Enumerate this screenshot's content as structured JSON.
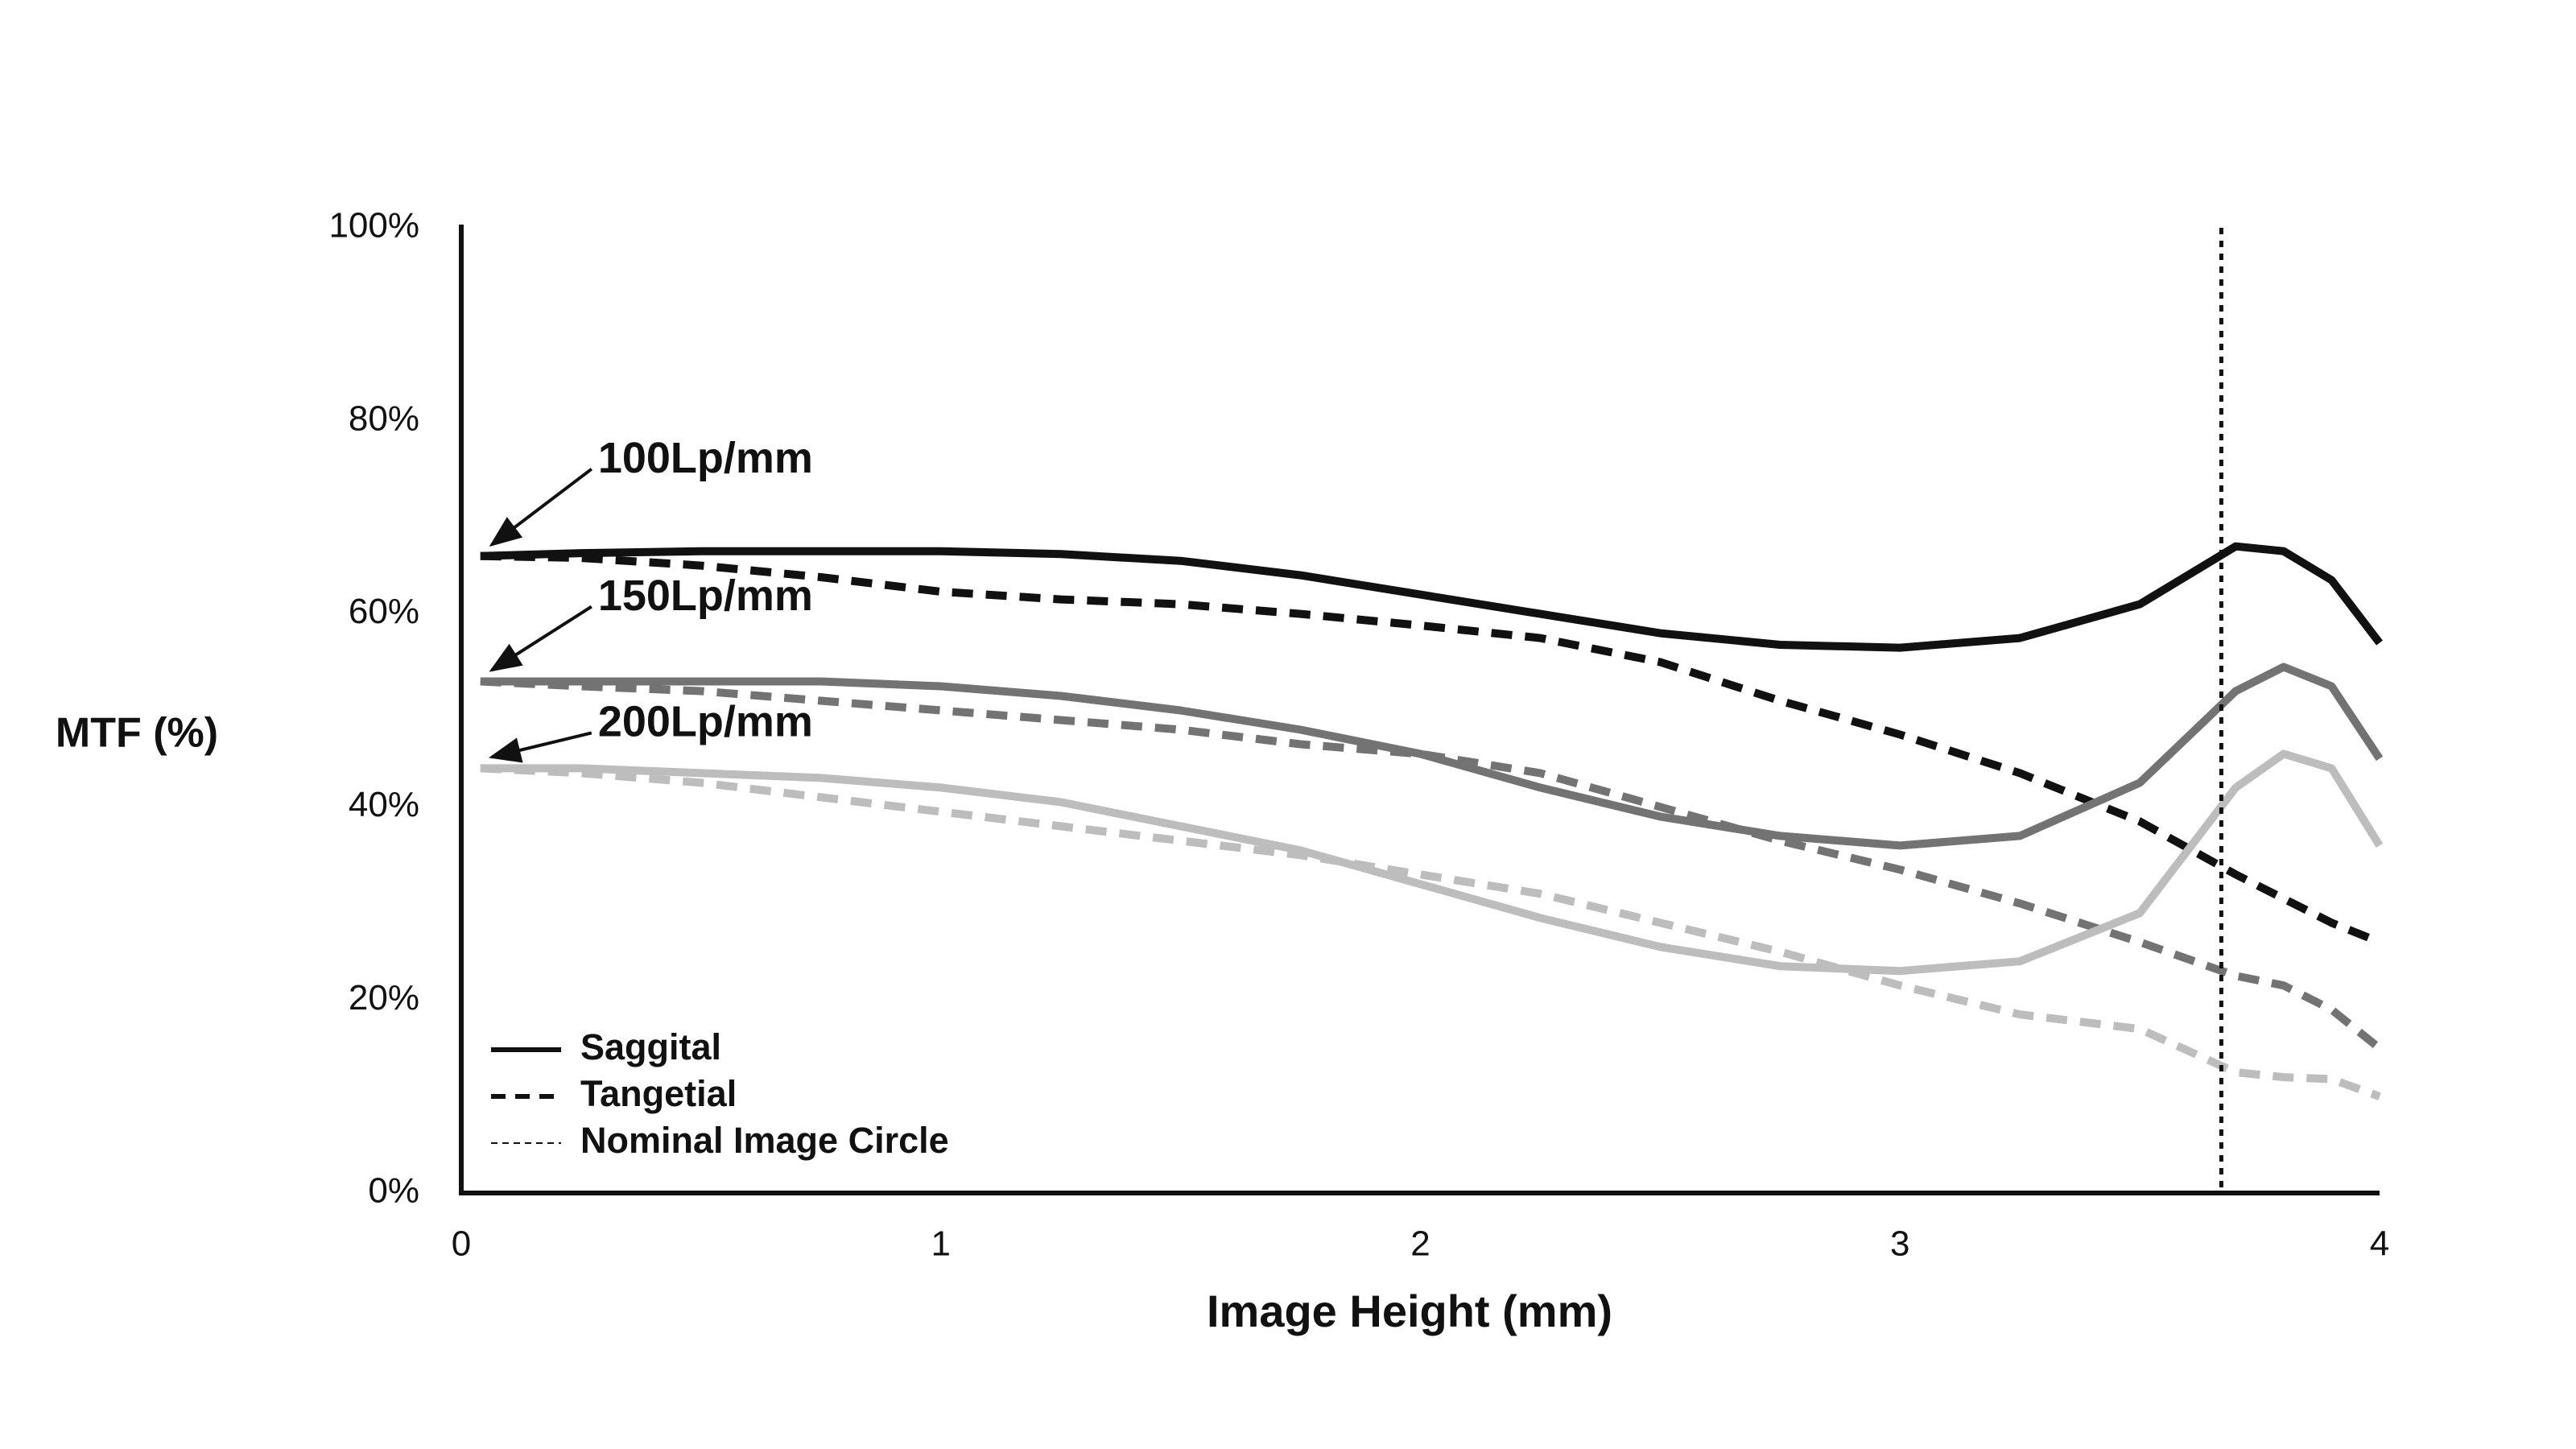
{
  "chart_data": {
    "type": "line",
    "ylabel": "MTF (%)",
    "xlabel": "Image Height (mm)",
    "xlim": [
      0,
      4
    ],
    "xticks": [
      0,
      1,
      2,
      3,
      4
    ],
    "ylim": [
      0,
      100
    ],
    "yticks": [
      {
        "value": 0,
        "label": "0%"
      },
      {
        "value": 20,
        "label": "20%"
      },
      {
        "value": 40,
        "label": "40%"
      },
      {
        "value": 60,
        "label": "60%"
      },
      {
        "value": 80,
        "label": "80%"
      },
      {
        "value": 100,
        "label": "100%"
      }
    ],
    "grid": false,
    "x": [
      0.04,
      0.25,
      0.5,
      0.75,
      1,
      1.25,
      1.5,
      1.75,
      2,
      2.25,
      2.5,
      2.75,
      3,
      3.25,
      3.5,
      3.7,
      3.8,
      3.9,
      4
    ],
    "series": [
      {
        "label": "100Lp/mm",
        "style": "solid",
        "color": "#111111",
        "values": [
          66,
          66.3,
          66.5,
          66.5,
          66.5,
          66.2,
          65.5,
          64,
          62,
          60,
          58,
          56.8,
          56.5,
          57.5,
          61,
          67,
          66.5,
          63.5,
          57
        ]
      },
      {
        "style": "dashed",
        "color": "#111111",
        "values": [
          66,
          65.8,
          65,
          63.8,
          62.3,
          61.5,
          61,
          60,
          58.8,
          57.5,
          55,
          51,
          47.5,
          43.5,
          38.5,
          33,
          30.5,
          28,
          26
        ]
      },
      {
        "label": "150Lp/mm",
        "style": "solid",
        "color": "#737373",
        "values": [
          53,
          53,
          53,
          53,
          52.5,
          51.5,
          50,
          48,
          45.5,
          42,
          39,
          37,
          36,
          37,
          42.5,
          52,
          54.5,
          52.5,
          45
        ]
      },
      {
        "style": "dashed",
        "color": "#737373",
        "values": [
          53,
          52.5,
          52,
          51,
          50,
          49,
          48,
          46.5,
          45.5,
          43.5,
          40,
          36.5,
          33.5,
          30,
          26,
          22.5,
          21.5,
          19,
          15
        ]
      },
      {
        "label": "200Lp/mm",
        "style": "solid",
        "color": "#bdbdbd",
        "values": [
          44,
          44,
          43.5,
          43,
          42,
          40.5,
          38,
          35.5,
          32,
          28.5,
          25.5,
          23.5,
          23,
          24,
          29,
          42,
          45.5,
          44,
          36
        ]
      },
      {
        "style": "dashed",
        "color": "#bdbdbd",
        "values": [
          44,
          43.5,
          42.5,
          41,
          39.5,
          38,
          36.5,
          35,
          33,
          31,
          28,
          25,
          21.5,
          18.5,
          17,
          12.5,
          12,
          11.8,
          10
        ]
      }
    ],
    "reference_line": {
      "x": 3.67,
      "style": "dotted",
      "color": "#111111"
    },
    "legend": [
      {
        "text": "Saggital",
        "style": "solid"
      },
      {
        "text": "Tangetial",
        "style": "dashed"
      },
      {
        "text": "Nominal Image Circle",
        "style": "dotted"
      }
    ]
  }
}
